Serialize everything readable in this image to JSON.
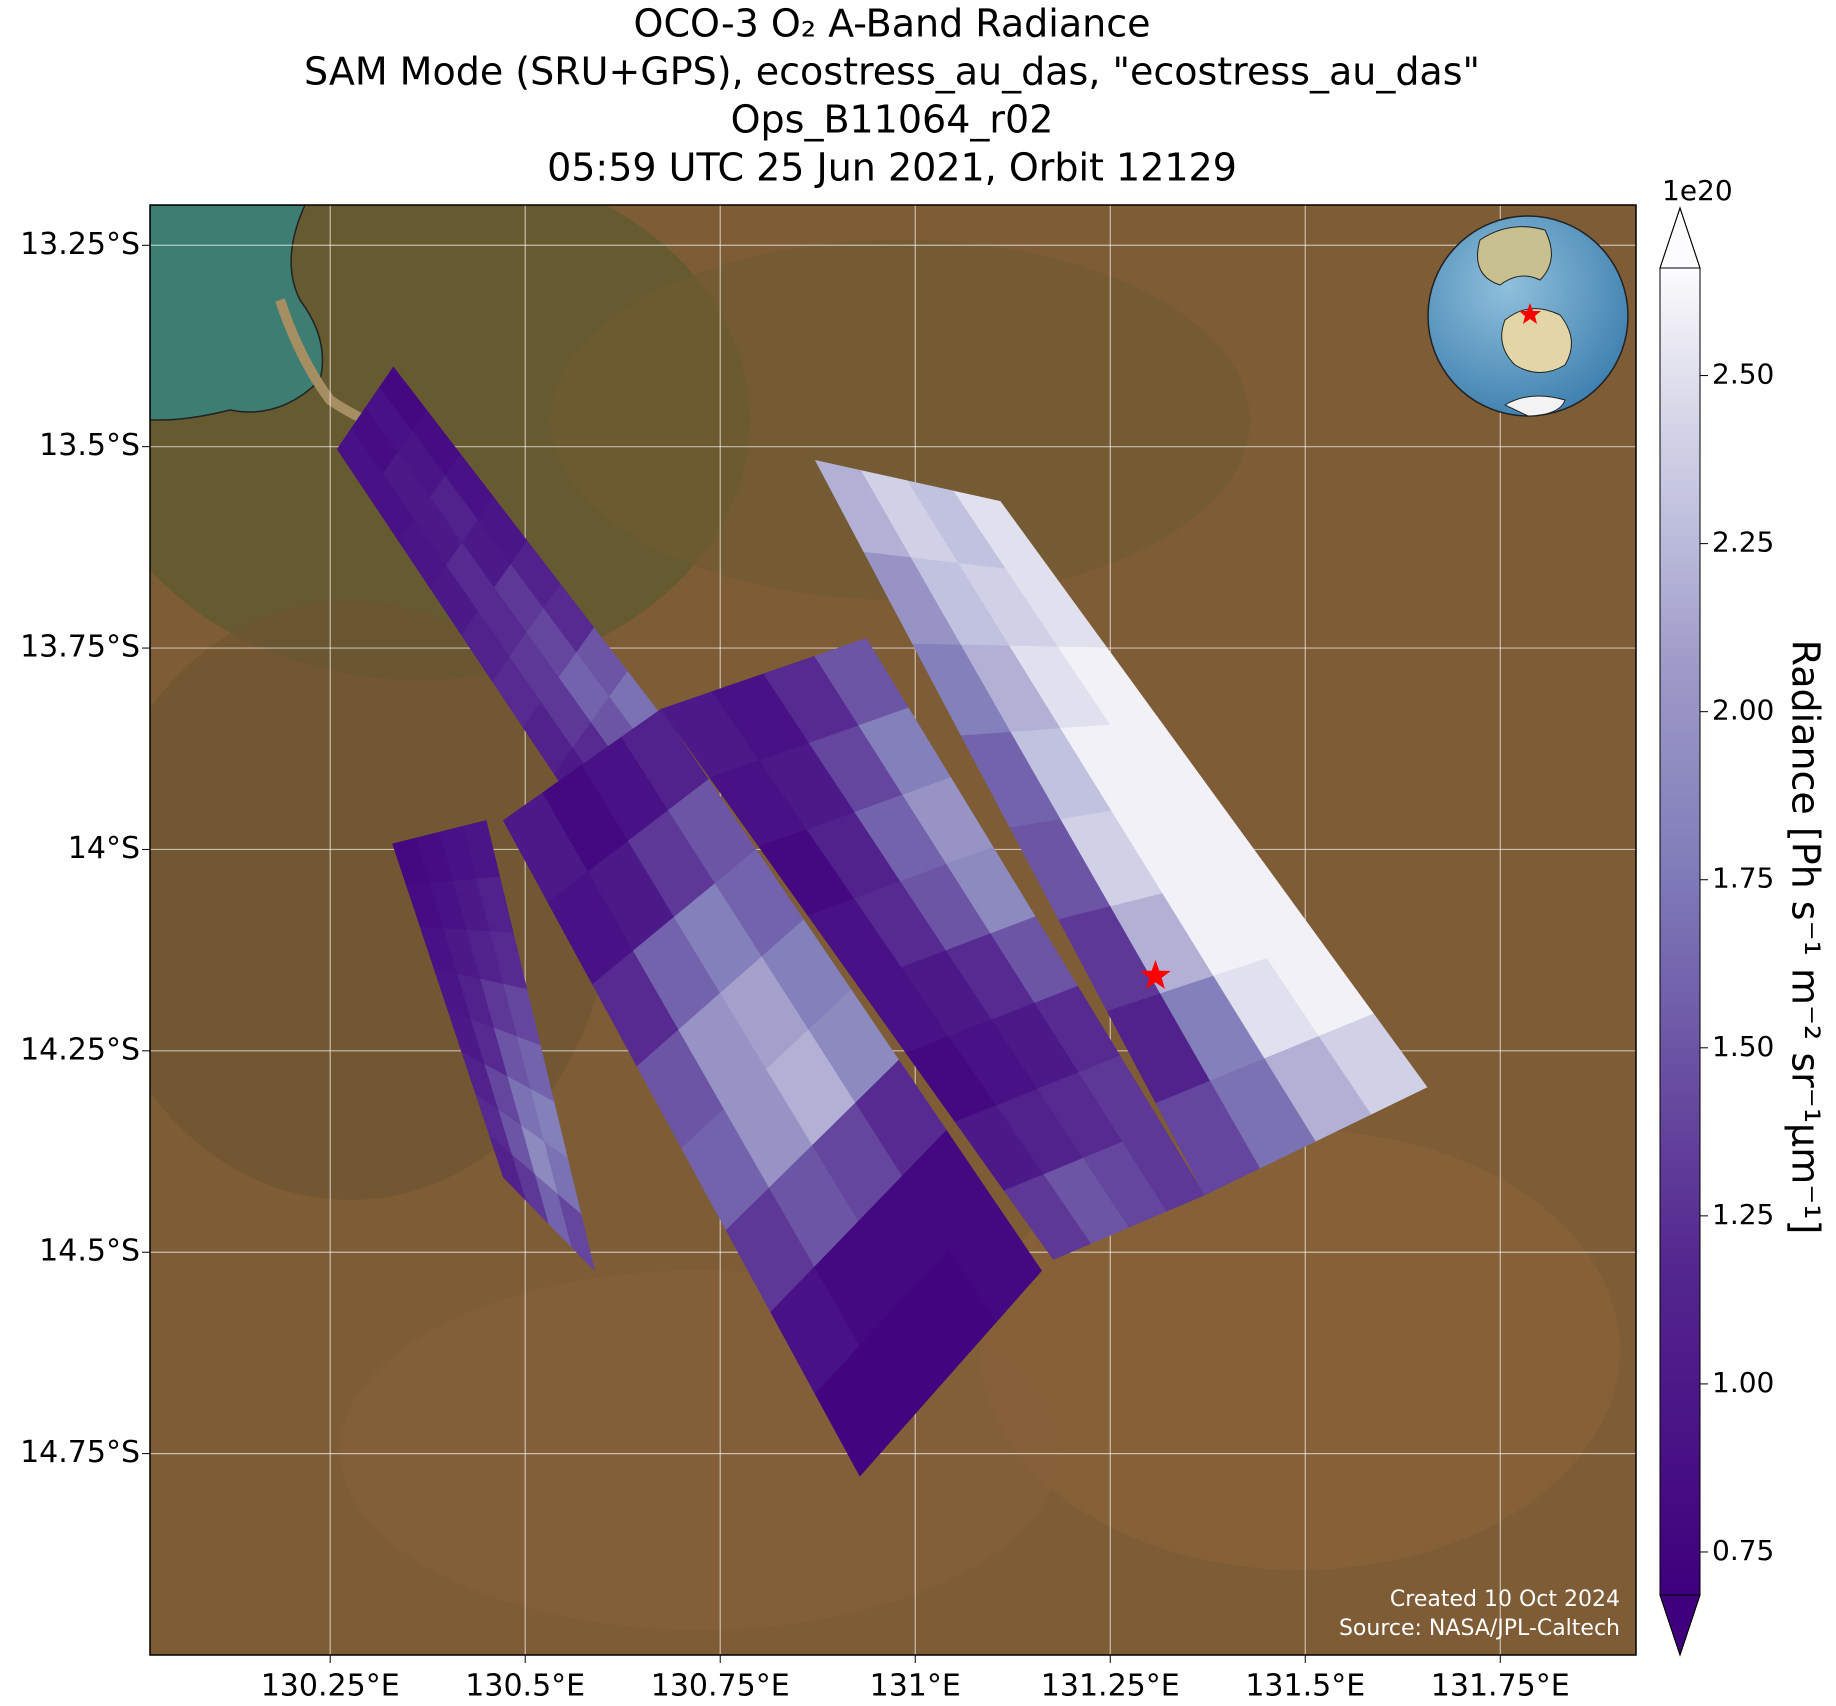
{
  "chart_data": {
    "type": "map",
    "title": [
      "OCO-3 O₂ A-Band Radiance",
      "SAM Mode (SRU+GPS), ecostress_au_das, \"ecostress_au_das\"",
      "Ops_B11064_r02",
      "05:59 UTC 25 Jun 2021, Orbit 12129"
    ],
    "xlim": [
      130.019,
      131.924
    ],
    "ylim": [
      -13.2,
      -15.0
    ],
    "xticks": [
      {
        "value": 130.25,
        "label": "130.25°E"
      },
      {
        "value": 130.5,
        "label": "130.5°E"
      },
      {
        "value": 130.75,
        "label": "130.75°E"
      },
      {
        "value": 131.0,
        "label": "131°E"
      },
      {
        "value": 131.25,
        "label": "131.25°E"
      },
      {
        "value": 131.5,
        "label": "131.5°E"
      },
      {
        "value": 131.75,
        "label": "131.75°E"
      }
    ],
    "yticks": [
      {
        "value": -13.25,
        "label": "13.25°S"
      },
      {
        "value": -13.5,
        "label": "13.5°S"
      },
      {
        "value": -13.75,
        "label": "13.75°S"
      },
      {
        "value": -14.0,
        "label": "14°S"
      },
      {
        "value": -14.25,
        "label": "14.25°S"
      },
      {
        "value": -14.5,
        "label": "14.5°S"
      },
      {
        "value": -14.75,
        "label": "14.75°S"
      }
    ],
    "grid": true,
    "swaths": [
      {
        "lon": [
          130.331,
          130.259,
          130.577,
          130.674
        ],
        "lat": [
          -13.401,
          -13.503,
          -13.964,
          -13.833
        ],
        "values": [
          [
            0.8,
            0.9,
            0.85,
            0.9
          ],
          [
            0.85,
            0.95,
            1.0,
            0.9
          ],
          [
            0.9,
            1.1,
            1.0,
            0.95
          ],
          [
            0.95,
            1.0,
            1.2,
            1.0
          ],
          [
            1.1,
            1.3,
            1.2,
            1.1
          ],
          [
            1.2,
            1.4,
            1.3,
            1.2
          ],
          [
            1.5,
            1.6,
            1.3,
            1.1
          ],
          [
            1.7,
            1.5,
            1.2,
            1.0
          ]
        ]
      },
      {
        "lon": [
          130.33,
          130.45,
          130.589,
          130.472
        ],
        "lat": [
          -13.993,
          -13.964,
          -14.523,
          -14.407
        ],
        "values": [
          [
            0.8,
            0.85,
            0.9,
            0.95
          ],
          [
            0.85,
            0.9,
            1.0,
            1.1
          ],
          [
            0.9,
            1.0,
            1.1,
            1.2
          ],
          [
            0.95,
            1.1,
            1.3,
            1.4
          ],
          [
            1.0,
            1.2,
            1.5,
            1.6
          ],
          [
            1.1,
            1.4,
            1.7,
            1.8
          ],
          [
            1.2,
            1.5,
            1.9,
            1.7
          ],
          [
            1.1,
            1.3,
            1.6,
            1.4
          ]
        ]
      },
      {
        "lon": [
          130.472,
          130.674,
          131.162,
          130.929
        ],
        "lat": [
          -13.964,
          -13.826,
          -14.523,
          -14.778
        ],
        "values": [
          [
            1.0,
            0.8,
            0.9,
            1.1
          ],
          [
            0.9,
            1.0,
            1.3,
            1.5
          ],
          [
            1.2,
            1.6,
            1.8,
            1.6
          ],
          [
            1.5,
            2.0,
            2.1,
            1.8
          ],
          [
            1.6,
            2.0,
            2.2,
            1.9
          ],
          [
            1.3,
            1.5,
            1.4,
            1.2
          ],
          [
            0.9,
            0.8,
            0.8,
            0.8
          ],
          [
            0.75,
            0.75,
            0.75,
            0.8
          ]
        ]
      },
      {
        "lon": [
          130.674,
          130.937,
          131.371,
          131.177
        ],
        "lat": [
          -13.826,
          -13.738,
          -14.429,
          -14.509
        ],
        "values": [
          [
            1.0,
            0.9,
            1.2,
            1.5
          ],
          [
            0.9,
            1.0,
            1.4,
            1.8
          ],
          [
            0.8,
            1.1,
            1.6,
            2.0
          ],
          [
            0.9,
            1.2,
            1.5,
            1.9
          ],
          [
            0.9,
            1.0,
            1.2,
            1.5
          ],
          [
            0.8,
            0.9,
            1.0,
            1.2
          ],
          [
            1.0,
            1.1,
            1.2,
            1.3
          ],
          [
            1.3,
            1.5,
            1.4,
            1.3
          ]
        ]
      },
      {
        "lon": [
          130.872,
          131.109,
          131.656,
          131.371
        ],
        "lat": [
          -13.517,
          -13.568,
          -14.295,
          -14.429
        ],
        "values": [
          [
            2.2,
            2.4,
            2.3,
            2.5
          ],
          [
            2.0,
            2.3,
            2.4,
            2.5
          ],
          [
            1.8,
            2.2,
            2.5,
            2.6
          ],
          [
            1.6,
            2.3,
            2.6,
            2.6
          ],
          [
            1.5,
            2.4,
            2.6,
            2.6
          ],
          [
            1.3,
            2.2,
            2.6,
            2.6
          ],
          [
            1.1,
            1.8,
            2.5,
            2.6
          ],
          [
            1.4,
            1.7,
            2.2,
            2.4
          ]
        ]
      }
    ],
    "target": {
      "lon": 131.308,
      "lat": -14.157,
      "color": "#ff0000"
    },
    "colorbar": {
      "label": "Radiance [Ph s⁻¹ m⁻² sr⁻¹μm⁻¹]",
      "offset_label": "1e20",
      "clim": [
        0.686,
        2.66
      ],
      "extend": "both",
      "ticks": [
        {
          "value": 0.75,
          "label": "0.75"
        },
        {
          "value": 1.0,
          "label": "1.00"
        },
        {
          "value": 1.25,
          "label": "1.25"
        },
        {
          "value": 1.5,
          "label": "1.50"
        },
        {
          "value": 1.75,
          "label": "1.75"
        },
        {
          "value": 2.0,
          "label": "2.00"
        },
        {
          "value": 2.25,
          "label": "2.25"
        },
        {
          "value": 2.5,
          "label": "2.50"
        }
      ]
    },
    "footer": [
      "Created 10 Oct 2024",
      "Source: NASA/JPL-Caltech"
    ]
  }
}
